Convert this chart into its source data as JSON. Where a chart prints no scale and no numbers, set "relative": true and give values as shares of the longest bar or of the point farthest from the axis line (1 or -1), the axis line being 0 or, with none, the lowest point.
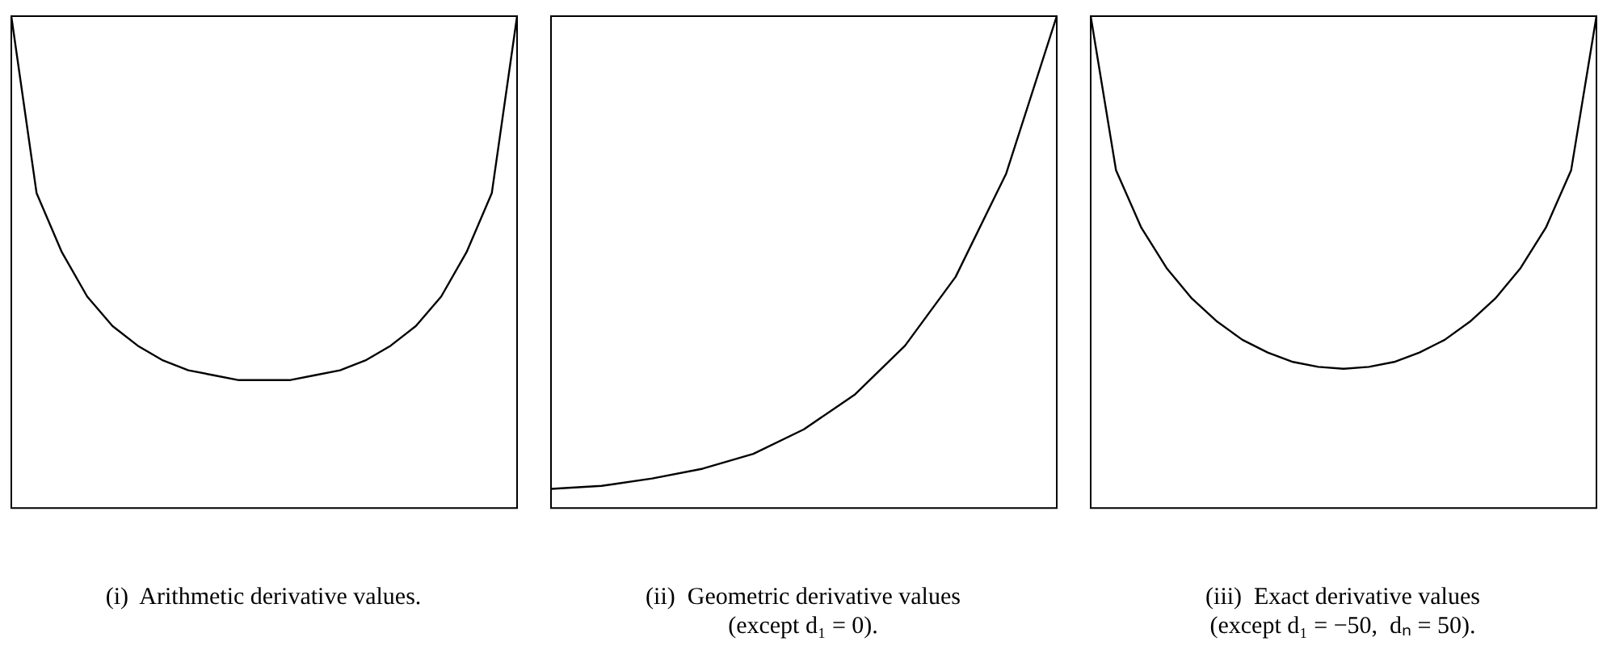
{
  "chart_data": [
    {
      "type": "line",
      "relative": true,
      "title": "(i)  Arithmetic derivative values.",
      "categories": [
        null,
        null,
        null,
        null,
        null,
        null,
        null,
        null,
        null,
        null,
        null,
        null,
        null,
        null,
        null,
        null,
        null,
        null,
        null,
        null,
        null
      ],
      "grid": false,
      "legend": false,
      "marker": "none",
      "series": [
        {
          "color": "#000000",
          "values": [
            1,
            0.64,
            0.52,
            0.43,
            0.37,
            0.33,
            0.3,
            0.28,
            0.27,
            0.26,
            0.26,
            0.26,
            0.27,
            0.28,
            0.3,
            0.33,
            0.37,
            0.43,
            0.52,
            0.64,
            1
          ]
        }
      ]
    },
    {
      "type": "line",
      "relative": true,
      "title": "(ii)  Geometric derivative values\n(except d₁ = 0).",
      "categories": [
        null,
        null,
        null,
        null,
        null,
        null,
        null,
        null,
        null,
        null,
        null
      ],
      "grid": false,
      "legend": false,
      "marker": "none",
      "series": [
        {
          "color": "#000000",
          "values": [
            0.039,
            0.045,
            0.06,
            0.08,
            0.11,
            0.16,
            0.23,
            0.33,
            0.47,
            0.68,
            1
          ]
        }
      ]
    },
    {
      "type": "line",
      "relative": true,
      "title": "(iii)  Exact derivative values\n(except d₁ = −50,  dₙ = 50).",
      "categories": [
        null,
        null,
        null,
        null,
        null,
        null,
        null,
        null,
        null,
        null,
        null,
        null,
        null,
        null,
        null,
        null,
        null,
        null,
        null,
        null,
        null
      ],
      "grid": false,
      "legend": false,
      "marker": "none",
      "series": [
        {
          "color": "#000000",
          "values": [
            1,
            0.687,
            0.57,
            0.488,
            0.426,
            0.379,
            0.342,
            0.316,
            0.297,
            0.287,
            0.283,
            0.287,
            0.297,
            0.316,
            0.342,
            0.379,
            0.426,
            0.488,
            0.57,
            0.687,
            1
          ]
        }
      ]
    }
  ]
}
